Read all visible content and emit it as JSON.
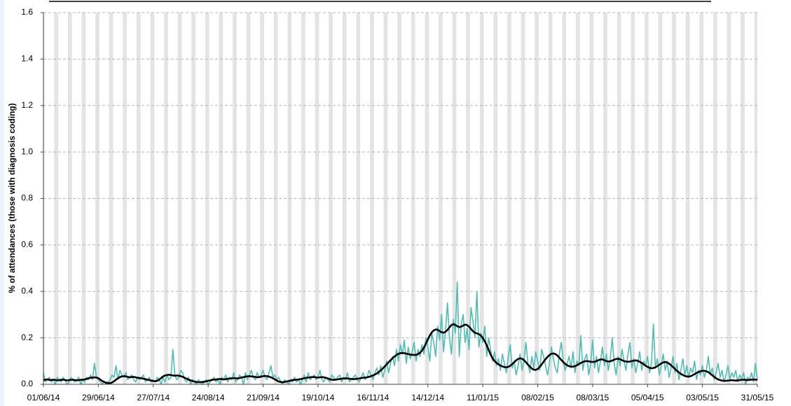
{
  "chart_data": {
    "type": "line",
    "y_label": "% of attendances (those with diagnosis coding)",
    "ylim": [
      0,
      1.6
    ],
    "yticks": [
      {
        "value": 0,
        "label": "0.0"
      },
      0.2,
      0.4,
      0.6,
      0.8,
      {
        "value": 1,
        "label": "1.0"
      },
      1.2,
      1.4,
      1.6
    ],
    "grid": true,
    "categories": [
      "01/06/14",
      null,
      null,
      null,
      null,
      null,
      null,
      null,
      null,
      null,
      null,
      null,
      null,
      null,
      null,
      null,
      null,
      null,
      null,
      null,
      null,
      null,
      null,
      null,
      null,
      null,
      null,
      null,
      "29/06/14",
      null,
      null,
      null,
      null,
      null,
      null,
      null,
      null,
      null,
      null,
      null,
      null,
      null,
      null,
      null,
      null,
      null,
      null,
      null,
      null,
      null,
      null,
      null,
      null,
      null,
      null,
      null,
      "27/07/14",
      null,
      null,
      null,
      null,
      null,
      null,
      null,
      null,
      null,
      null,
      null,
      null,
      null,
      null,
      null,
      null,
      null,
      null,
      null,
      null,
      null,
      null,
      null,
      null,
      null,
      null,
      null,
      "24/08/14",
      null,
      null,
      null,
      null,
      null,
      null,
      null,
      null,
      null,
      null,
      null,
      null,
      null,
      null,
      null,
      null,
      null,
      null,
      null,
      null,
      null,
      null,
      null,
      null,
      null,
      null,
      null,
      "21/09/14",
      null,
      null,
      null,
      null,
      null,
      null,
      null,
      null,
      null,
      null,
      null,
      null,
      null,
      null,
      null,
      null,
      null,
      null,
      null,
      null,
      null,
      null,
      null,
      null,
      null,
      null,
      null,
      "19/10/14",
      null,
      null,
      null,
      null,
      null,
      null,
      null,
      null,
      null,
      null,
      null,
      null,
      null,
      null,
      null,
      null,
      null,
      null,
      null,
      null,
      null,
      null,
      null,
      null,
      null,
      null,
      null,
      "16/11/14",
      null,
      null,
      null,
      null,
      null,
      null,
      null,
      null,
      null,
      null,
      null,
      null,
      null,
      null,
      null,
      null,
      null,
      null,
      null,
      null,
      null,
      null,
      null,
      null,
      null,
      null,
      null,
      "14/12/14",
      null,
      null,
      null,
      null,
      null,
      null,
      null,
      null,
      null,
      null,
      null,
      null,
      null,
      null,
      null,
      null,
      null,
      null,
      null,
      null,
      null,
      null,
      null,
      null,
      null,
      null,
      null,
      "11/01/15",
      null,
      null,
      null,
      null,
      null,
      null,
      null,
      null,
      null,
      null,
      null,
      null,
      null,
      null,
      null,
      null,
      null,
      null,
      null,
      null,
      null,
      null,
      null,
      null,
      null,
      null,
      null,
      "08/02/15",
      null,
      null,
      null,
      null,
      null,
      null,
      null,
      null,
      null,
      null,
      null,
      null,
      null,
      null,
      null,
      null,
      null,
      null,
      null,
      null,
      null,
      null,
      null,
      null,
      null,
      null,
      null,
      "08/03/15",
      null,
      null,
      null,
      null,
      null,
      null,
      null,
      null,
      null,
      null,
      null,
      null,
      null,
      null,
      null,
      null,
      null,
      null,
      null,
      null,
      null,
      null,
      null,
      null,
      null,
      null,
      null,
      "05/04/15",
      null,
      null,
      null,
      null,
      null,
      null,
      null,
      null,
      null,
      null,
      null,
      null,
      null,
      null,
      null,
      null,
      null,
      null,
      null,
      null,
      null,
      null,
      null,
      null,
      null,
      null,
      null,
      "03/05/15",
      null,
      null,
      null,
      null,
      null,
      null,
      null,
      null,
      null,
      null,
      null,
      null,
      null,
      null,
      null,
      null,
      null,
      null,
      null,
      null,
      null,
      null,
      null,
      null,
      null,
      null,
      null,
      "31/05/15"
    ],
    "series": [
      {
        "color": "#4dbdb5",
        "values": [
          0.05,
          0.01,
          0.02,
          0.03,
          0.01,
          0.02,
          0.0,
          0.03,
          0.02,
          0.01,
          0.03,
          0.02,
          0.0,
          0.01,
          0.03,
          0.02,
          0.01,
          0.02,
          0.03,
          0.0,
          0.02,
          0.01,
          0.03,
          0.02,
          0.04,
          0.02,
          0.09,
          0.03,
          0.02,
          0.01,
          0.0,
          0.01,
          0.0,
          0.01,
          0.02,
          0.04,
          0.03,
          0.08,
          0.02,
          0.06,
          0.04,
          0.03,
          0.05,
          0.02,
          0.03,
          0.04,
          0.02,
          0.01,
          0.03,
          0.02,
          0.03,
          0.04,
          0.01,
          0.02,
          0.03,
          0.01,
          0.02,
          0.01,
          0.03,
          0.02,
          0.0,
          0.03,
          0.01,
          0.04,
          0.02,
          0.03,
          0.15,
          0.04,
          0.02,
          0.03,
          0.06,
          0.05,
          0.02,
          0.01,
          0.03,
          0.0,
          0.02,
          0.01,
          0.0,
          0.02,
          0.01,
          0.0,
          0.01,
          0.02,
          0.0,
          0.01,
          0.02,
          0.03,
          0.01,
          0.02,
          0.0,
          0.03,
          0.02,
          0.04,
          0.01,
          0.03,
          0.02,
          0.05,
          0.01,
          0.02,
          0.04,
          0.03,
          0.0,
          0.05,
          0.02,
          0.04,
          0.06,
          0.03,
          0.02,
          0.05,
          0.03,
          0.04,
          0.06,
          0.03,
          0.02,
          0.05,
          0.08,
          0.03,
          0.04,
          0.02,
          0.03,
          0.01,
          0.0,
          0.02,
          0.01,
          0.0,
          0.02,
          0.01,
          0.03,
          0.01,
          0.02,
          0.0,
          0.02,
          0.04,
          0.01,
          0.05,
          0.02,
          0.03,
          0.04,
          0.02,
          0.03,
          0.06,
          0.02,
          0.01,
          0.03,
          0.02,
          0.01,
          0.04,
          0.03,
          0.02,
          0.03,
          0.04,
          0.01,
          0.03,
          0.02,
          0.05,
          0.01,
          0.02,
          0.03,
          0.04,
          0.02,
          0.01,
          0.03,
          0.05,
          0.02,
          0.03,
          0.06,
          0.04,
          0.02,
          0.05,
          0.07,
          0.04,
          0.08,
          0.03,
          0.06,
          0.1,
          0.05,
          0.09,
          0.12,
          0.08,
          0.15,
          0.1,
          0.17,
          0.13,
          0.19,
          0.09,
          0.16,
          0.11,
          0.14,
          0.18,
          0.1,
          0.15,
          0.12,
          0.17,
          0.13,
          0.2,
          0.16,
          0.1,
          0.22,
          0.18,
          0.12,
          0.25,
          0.19,
          0.3,
          0.14,
          0.23,
          0.35,
          0.2,
          0.13,
          0.28,
          0.22,
          0.44,
          0.12,
          0.26,
          0.3,
          0.18,
          0.24,
          0.15,
          0.33,
          0.27,
          0.2,
          0.4,
          0.16,
          0.22,
          0.18,
          0.25,
          0.12,
          0.2,
          0.15,
          0.1,
          0.14,
          0.08,
          0.11,
          0.06,
          0.13,
          0.09,
          0.05,
          0.12,
          0.17,
          0.07,
          0.1,
          0.04,
          0.08,
          0.13,
          0.06,
          0.1,
          0.18,
          0.09,
          0.05,
          0.12,
          0.07,
          0.14,
          0.1,
          0.06,
          0.15,
          0.12,
          0.08,
          0.04,
          0.09,
          0.16,
          0.11,
          0.07,
          0.05,
          0.13,
          0.18,
          0.1,
          0.06,
          0.09,
          0.12,
          0.07,
          0.14,
          0.05,
          0.1,
          0.08,
          0.21,
          0.06,
          0.11,
          0.13,
          0.04,
          0.09,
          0.19,
          0.07,
          0.12,
          0.05,
          0.1,
          0.16,
          0.08,
          0.13,
          0.06,
          0.11,
          0.2,
          0.09,
          0.04,
          0.12,
          0.08,
          0.15,
          0.1,
          0.06,
          0.13,
          0.18,
          0.07,
          0.11,
          0.05,
          0.09,
          0.14,
          0.06,
          0.1,
          0.08,
          0.12,
          0.05,
          0.09,
          0.26,
          0.07,
          0.11,
          0.04,
          0.08,
          0.13,
          0.06,
          0.1,
          0.03,
          0.07,
          0.12,
          0.05,
          0.09,
          0.02,
          0.06,
          0.11,
          0.04,
          0.08,
          0.03,
          0.07,
          0.05,
          0.1,
          0.02,
          0.06,
          0.04,
          0.08,
          0.03,
          0.06,
          0.12,
          0.04,
          0.07,
          0.02,
          0.05,
          0.09,
          0.03,
          0.06,
          0.01,
          0.04,
          0.08,
          0.02,
          0.05,
          0.03,
          0.06,
          0.01,
          0.04,
          0.02,
          0.05,
          0.0,
          0.03,
          0.02,
          0.05,
          0.01,
          0.09,
          0.02
        ]
      },
      {
        "color": "#000000",
        "values": [
          0.018,
          0.02,
          0.021,
          0.019,
          0.018,
          0.02,
          0.019,
          0.017,
          0.018,
          0.019,
          0.02,
          0.018,
          0.017,
          0.018,
          0.019,
          0.02,
          0.018,
          0.017,
          0.018,
          0.019,
          0.02,
          0.021,
          0.023,
          0.026,
          0.028,
          0.029,
          0.03,
          0.029,
          0.026,
          0.02,
          0.014,
          0.01,
          0.007,
          0.005,
          0.005,
          0.008,
          0.013,
          0.02,
          0.026,
          0.031,
          0.034,
          0.035,
          0.034,
          0.032,
          0.03,
          0.031,
          0.032,
          0.03,
          0.028,
          0.027,
          0.026,
          0.024,
          0.022,
          0.02,
          0.018,
          0.016,
          0.014,
          0.013,
          0.015,
          0.02,
          0.027,
          0.034,
          0.038,
          0.04,
          0.041,
          0.04,
          0.038,
          0.037,
          0.038,
          0.037,
          0.035,
          0.032,
          0.028,
          0.024,
          0.02,
          0.017,
          0.014,
          0.012,
          0.01,
          0.009,
          0.009,
          0.01,
          0.011,
          0.013,
          0.015,
          0.017,
          0.019,
          0.02,
          0.021,
          0.022,
          0.023,
          0.022,
          0.021,
          0.022,
          0.024,
          0.025,
          0.026,
          0.027,
          0.026,
          0.025,
          0.027,
          0.029,
          0.031,
          0.033,
          0.034,
          0.035,
          0.034,
          0.033,
          0.032,
          0.03,
          0.031,
          0.033,
          0.035,
          0.036,
          0.035,
          0.033,
          0.03,
          0.026,
          0.021,
          0.016,
          0.012,
          0.01,
          0.009,
          0.01,
          0.012,
          0.014,
          0.016,
          0.018,
          0.019,
          0.02,
          0.021,
          0.022,
          0.024,
          0.026,
          0.028,
          0.029,
          0.03,
          0.031,
          0.031,
          0.03,
          0.029,
          0.03,
          0.031,
          0.03,
          0.028,
          0.025,
          0.022,
          0.02,
          0.019,
          0.02,
          0.021,
          0.023,
          0.024,
          0.025,
          0.026,
          0.025,
          0.024,
          0.023,
          0.022,
          0.023,
          0.024,
          0.025,
          0.027,
          0.028,
          0.029,
          0.03,
          0.032,
          0.035,
          0.038,
          0.042,
          0.047,
          0.053,
          0.06,
          0.068,
          0.077,
          0.086,
          0.095,
          0.104,
          0.112,
          0.12,
          0.126,
          0.131,
          0.134,
          0.135,
          0.134,
          0.132,
          0.13,
          0.128,
          0.127,
          0.126,
          0.127,
          0.13,
          0.136,
          0.145,
          0.158,
          0.175,
          0.193,
          0.21,
          0.224,
          0.232,
          0.236,
          0.235,
          0.229,
          0.224,
          0.222,
          0.226,
          0.234,
          0.245,
          0.255,
          0.259,
          0.256,
          0.25,
          0.246,
          0.248,
          0.253,
          0.257,
          0.255,
          0.248,
          0.238,
          0.228,
          0.222,
          0.219,
          0.216,
          0.21,
          0.2,
          0.186,
          0.168,
          0.148,
          0.128,
          0.112,
          0.1,
          0.092,
          0.086,
          0.081,
          0.077,
          0.074,
          0.073,
          0.075,
          0.08,
          0.087,
          0.095,
          0.103,
          0.109,
          0.112,
          0.11,
          0.104,
          0.095,
          0.085,
          0.076,
          0.068,
          0.063,
          0.062,
          0.066,
          0.074,
          0.085,
          0.097,
          0.108,
          0.118,
          0.126,
          0.131,
          0.133,
          0.13,
          0.124,
          0.115,
          0.105,
          0.096,
          0.088,
          0.082,
          0.078,
          0.076,
          0.076,
          0.078,
          0.082,
          0.087,
          0.092,
          0.096,
          0.099,
          0.1,
          0.099,
          0.097,
          0.096,
          0.097,
          0.1,
          0.104,
          0.107,
          0.107,
          0.104,
          0.1,
          0.098,
          0.099,
          0.102,
          0.106,
          0.109,
          0.11,
          0.108,
          0.104,
          0.1,
          0.098,
          0.097,
          0.098,
          0.1,
          0.102,
          0.103,
          0.101,
          0.097,
          0.092,
          0.086,
          0.08,
          0.075,
          0.071,
          0.069,
          0.07,
          0.073,
          0.078,
          0.084,
          0.09,
          0.094,
          0.096,
          0.094,
          0.089,
          0.082,
          0.074,
          0.066,
          0.058,
          0.051,
          0.045,
          0.04,
          0.036,
          0.034,
          0.033,
          0.035,
          0.039,
          0.044,
          0.049,
          0.053,
          0.056,
          0.058,
          0.058,
          0.056,
          0.052,
          0.046,
          0.039,
          0.032,
          0.026,
          0.021,
          0.018,
          0.016,
          0.015,
          0.015,
          0.016,
          0.017,
          0.018,
          0.017,
          0.016,
          0.017,
          0.018,
          0.019,
          0.02,
          0.019,
          0.018,
          0.019,
          0.02,
          0.021,
          0.02,
          0.019
        ]
      }
    ]
  }
}
